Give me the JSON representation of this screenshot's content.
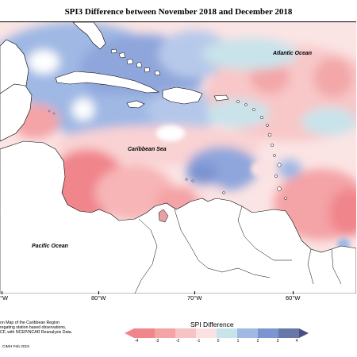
{
  "title": "SPI3 Difference between November 2018 and December 2018",
  "ocean_labels": {
    "atlantic": "Atlantic Ocean",
    "caribbean": "Caribbean Sea",
    "pacific": "Pacific Ocean"
  },
  "longitude_ticks": [
    "°W",
    "80°W",
    "70°W",
    "60°W"
  ],
  "source_note": [
    "on Map of the Caribbean Region",
    "regating station based observations,",
    "CF, with NCEP/NCAR Reanalysis Data."
  ],
  "credit": "CIMH Feb 2019",
  "legend": {
    "title": "SPI Difference",
    "labels": [
      "-4",
      "-3",
      "-2",
      "-1",
      "0",
      "1",
      "2",
      "3",
      "4"
    ],
    "colors": [
      "#f0858c",
      "#f4a3a6",
      "#f7c3c4",
      "#fbe1e1",
      "#c9e3ea",
      "#9fb8e4",
      "#7c95d2",
      "#6778a8",
      "#494f85"
    ]
  },
  "map_colors": {
    "land": "#ffffff",
    "strong_dry": "#f0858c",
    "dry": "#f7b5b7",
    "slight_dry": "#fbe1e1",
    "neutral": "#f6f6f6",
    "slight_wet": "#c9e3ea",
    "wet": "#9fb8e4",
    "strong_wet": "#7c95d2"
  }
}
